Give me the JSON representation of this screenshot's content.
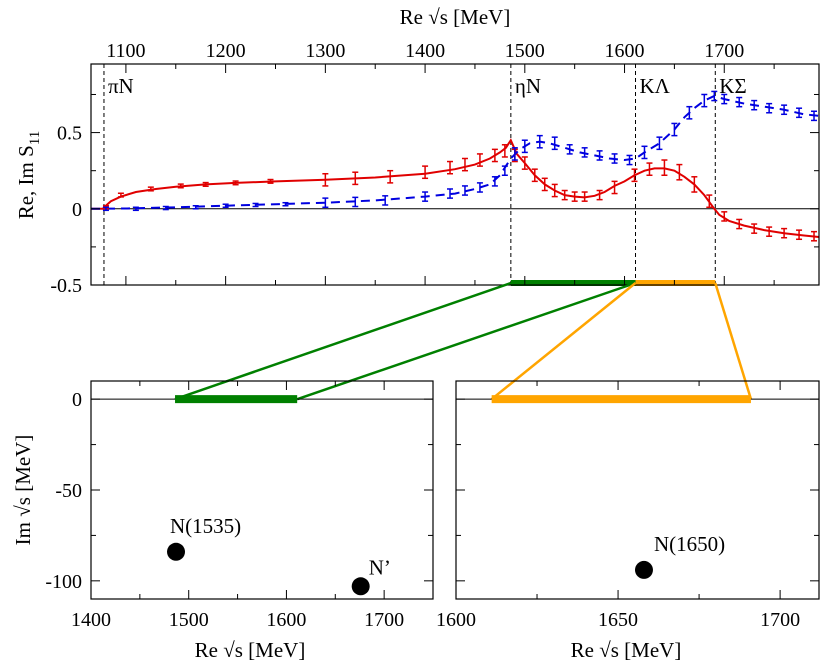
{
  "chart_data": [
    {
      "type": "line",
      "xlabel": "Re √s [MeV]",
      "ylabel_main": "Re, Im S",
      "ylabel_sub": "11",
      "xlim": [
        1065,
        1795
      ],
      "ylim": [
        -0.5,
        0.95
      ],
      "xticks": [
        1100,
        1200,
        1300,
        1400,
        1500,
        1600,
        1700
      ],
      "yticks": [
        -0.5,
        0,
        0.5
      ],
      "ytick_labels": [
        "-0.5",
        "0",
        "0.5"
      ],
      "thresholds": [
        {
          "label": "πN",
          "x": 1078
        },
        {
          "label": "ηN",
          "x": 1486
        },
        {
          "label": "KΛ",
          "x": 1611
        },
        {
          "label": "KΣ",
          "x": 1691
        }
      ],
      "series": [
        {
          "color": "#e00000",
          "dash": "solid",
          "curve": [
            [
              1065,
              0
            ],
            [
              1077,
              0
            ],
            [
              1078,
              0.01
            ],
            [
              1085,
              0.05
            ],
            [
              1095,
              0.08
            ],
            [
              1110,
              0.11
            ],
            [
              1130,
              0.13
            ],
            [
              1150,
              0.145
            ],
            [
              1180,
              0.16
            ],
            [
              1210,
              0.17
            ],
            [
              1250,
              0.18
            ],
            [
              1300,
              0.19
            ],
            [
              1350,
              0.205
            ],
            [
              1400,
              0.23
            ],
            [
              1430,
              0.26
            ],
            [
              1450,
              0.29
            ],
            [
              1465,
              0.33
            ],
            [
              1475,
              0.37
            ],
            [
              1481,
              0.4
            ],
            [
              1486,
              0.45
            ],
            [
              1492,
              0.36
            ],
            [
              1500,
              0.3
            ],
            [
              1510,
              0.22
            ],
            [
              1520,
              0.16
            ],
            [
              1530,
              0.12
            ],
            [
              1540,
              0.09
            ],
            [
              1550,
              0.08
            ],
            [
              1560,
              0.075
            ],
            [
              1570,
              0.085
            ],
            [
              1580,
              0.11
            ],
            [
              1590,
              0.15
            ],
            [
              1600,
              0.18
            ],
            [
              1610,
              0.22
            ],
            [
              1620,
              0.25
            ],
            [
              1630,
              0.265
            ],
            [
              1640,
              0.265
            ],
            [
              1650,
              0.25
            ],
            [
              1660,
              0.21
            ],
            [
              1670,
              0.16
            ],
            [
              1680,
              0.09
            ],
            [
              1690,
              0.0
            ],
            [
              1695,
              -0.04
            ],
            [
              1705,
              -0.08
            ],
            [
              1720,
              -0.11
            ],
            [
              1740,
              -0.14
            ],
            [
              1760,
              -0.16
            ],
            [
              1780,
              -0.175
            ],
            [
              1795,
              -0.185
            ]
          ],
          "points": [
            {
              "x": 1080,
              "y": 0.01,
              "e": 0.01
            },
            {
              "x": 1095,
              "y": 0.09,
              "e": 0.012
            },
            {
              "x": 1125,
              "y": 0.13,
              "e": 0.012
            },
            {
              "x": 1155,
              "y": 0.15,
              "e": 0.012
            },
            {
              "x": 1180,
              "y": 0.16,
              "e": 0.012
            },
            {
              "x": 1210,
              "y": 0.17,
              "e": 0.012
            },
            {
              "x": 1245,
              "y": 0.18,
              "e": 0.012
            },
            {
              "x": 1300,
              "y": 0.19,
              "e": 0.04
            },
            {
              "x": 1330,
              "y": 0.2,
              "e": 0.04
            },
            {
              "x": 1365,
              "y": 0.21,
              "e": 0.04
            },
            {
              "x": 1400,
              "y": 0.24,
              "e": 0.04
            },
            {
              "x": 1425,
              "y": 0.27,
              "e": 0.04
            },
            {
              "x": 1440,
              "y": 0.29,
              "e": 0.04
            },
            {
              "x": 1455,
              "y": 0.32,
              "e": 0.04
            },
            {
              "x": 1470,
              "y": 0.35,
              "e": 0.04
            },
            {
              "x": 1480,
              "y": 0.38,
              "e": 0.04
            },
            {
              "x": 1490,
              "y": 0.35,
              "e": 0.04
            },
            {
              "x": 1500,
              "y": 0.3,
              "e": 0.04
            },
            {
              "x": 1510,
              "y": 0.22,
              "e": 0.04
            },
            {
              "x": 1520,
              "y": 0.16,
              "e": 0.04
            },
            {
              "x": 1530,
              "y": 0.12,
              "e": 0.04
            },
            {
              "x": 1540,
              "y": 0.09,
              "e": 0.03
            },
            {
              "x": 1550,
              "y": 0.08,
              "e": 0.03
            },
            {
              "x": 1560,
              "y": 0.08,
              "e": 0.03
            },
            {
              "x": 1575,
              "y": 0.09,
              "e": 0.03
            },
            {
              "x": 1590,
              "y": 0.14,
              "e": 0.04
            },
            {
              "x": 1610,
              "y": 0.22,
              "e": 0.04
            },
            {
              "x": 1625,
              "y": 0.26,
              "e": 0.04
            },
            {
              "x": 1640,
              "y": 0.27,
              "e": 0.05
            },
            {
              "x": 1655,
              "y": 0.24,
              "e": 0.05
            },
            {
              "x": 1670,
              "y": 0.16,
              "e": 0.05
            },
            {
              "x": 1685,
              "y": 0.05,
              "e": 0.04
            },
            {
              "x": 1700,
              "y": -0.05,
              "e": 0.03
            },
            {
              "x": 1715,
              "y": -0.1,
              "e": 0.03
            },
            {
              "x": 1730,
              "y": -0.13,
              "e": 0.03
            },
            {
              "x": 1745,
              "y": -0.15,
              "e": 0.03
            },
            {
              "x": 1760,
              "y": -0.16,
              "e": 0.03
            },
            {
              "x": 1775,
              "y": -0.17,
              "e": 0.03
            },
            {
              "x": 1790,
              "y": -0.18,
              "e": 0.03
            }
          ]
        },
        {
          "color": "#0000e0",
          "dash": "dashed",
          "curve": [
            [
              1065,
              0
            ],
            [
              1100,
              0.002
            ],
            [
              1150,
              0.01
            ],
            [
              1200,
              0.02
            ],
            [
              1250,
              0.03
            ],
            [
              1300,
              0.04
            ],
            [
              1350,
              0.055
            ],
            [
              1400,
              0.08
            ],
            [
              1430,
              0.1
            ],
            [
              1450,
              0.13
            ],
            [
              1465,
              0.16
            ],
            [
              1475,
              0.22
            ],
            [
              1481,
              0.28
            ],
            [
              1486,
              0.33
            ],
            [
              1495,
              0.39
            ],
            [
              1505,
              0.43
            ],
            [
              1515,
              0.44
            ],
            [
              1525,
              0.43
            ],
            [
              1540,
              0.4
            ],
            [
              1555,
              0.37
            ],
            [
              1570,
              0.35
            ],
            [
              1585,
              0.33
            ],
            [
              1600,
              0.32
            ],
            [
              1611,
              0.33
            ],
            [
              1620,
              0.37
            ],
            [
              1635,
              0.43
            ],
            [
              1650,
              0.52
            ],
            [
              1660,
              0.6
            ],
            [
              1670,
              0.66
            ],
            [
              1680,
              0.71
            ],
            [
              1690,
              0.74
            ],
            [
              1700,
              0.72
            ],
            [
              1720,
              0.69
            ],
            [
              1740,
              0.67
            ],
            [
              1760,
              0.65
            ],
            [
              1780,
              0.62
            ],
            [
              1795,
              0.61
            ]
          ],
          "points": [
            {
              "x": 1080,
              "y": 0.0,
              "e": 0.01
            },
            {
              "x": 1110,
              "y": 0.0,
              "e": 0.01
            },
            {
              "x": 1140,
              "y": 0.005,
              "e": 0.01
            },
            {
              "x": 1170,
              "y": 0.01,
              "e": 0.01
            },
            {
              "x": 1200,
              "y": 0.02,
              "e": 0.01
            },
            {
              "x": 1230,
              "y": 0.025,
              "e": 0.01
            },
            {
              "x": 1260,
              "y": 0.03,
              "e": 0.01
            },
            {
              "x": 1300,
              "y": 0.04,
              "e": 0.03
            },
            {
              "x": 1330,
              "y": 0.045,
              "e": 0.03
            },
            {
              "x": 1360,
              "y": 0.055,
              "e": 0.03
            },
            {
              "x": 1400,
              "y": 0.08,
              "e": 0.03
            },
            {
              "x": 1425,
              "y": 0.1,
              "e": 0.03
            },
            {
              "x": 1440,
              "y": 0.12,
              "e": 0.03
            },
            {
              "x": 1455,
              "y": 0.14,
              "e": 0.03
            },
            {
              "x": 1470,
              "y": 0.18,
              "e": 0.03
            },
            {
              "x": 1480,
              "y": 0.25,
              "e": 0.03
            },
            {
              "x": 1490,
              "y": 0.36,
              "e": 0.04
            },
            {
              "x": 1500,
              "y": 0.41,
              "e": 0.04
            },
            {
              "x": 1515,
              "y": 0.44,
              "e": 0.04
            },
            {
              "x": 1530,
              "y": 0.43,
              "e": 0.04
            },
            {
              "x": 1545,
              "y": 0.39,
              "e": 0.03
            },
            {
              "x": 1560,
              "y": 0.37,
              "e": 0.03
            },
            {
              "x": 1575,
              "y": 0.35,
              "e": 0.03
            },
            {
              "x": 1590,
              "y": 0.33,
              "e": 0.03
            },
            {
              "x": 1605,
              "y": 0.32,
              "e": 0.03
            },
            {
              "x": 1620,
              "y": 0.37,
              "e": 0.04
            },
            {
              "x": 1635,
              "y": 0.43,
              "e": 0.04
            },
            {
              "x": 1650,
              "y": 0.52,
              "e": 0.04
            },
            {
              "x": 1665,
              "y": 0.63,
              "e": 0.04
            },
            {
              "x": 1680,
              "y": 0.71,
              "e": 0.04
            },
            {
              "x": 1690,
              "y": 0.74,
              "e": 0.03
            },
            {
              "x": 1700,
              "y": 0.72,
              "e": 0.03
            },
            {
              "x": 1715,
              "y": 0.7,
              "e": 0.03
            },
            {
              "x": 1730,
              "y": 0.68,
              "e": 0.03
            },
            {
              "x": 1745,
              "y": 0.66,
              "e": 0.03
            },
            {
              "x": 1760,
              "y": 0.65,
              "e": 0.03
            },
            {
              "x": 1775,
              "y": 0.63,
              "e": 0.03
            },
            {
              "x": 1790,
              "y": 0.61,
              "e": 0.03
            }
          ]
        }
      ],
      "bands": [
        {
          "color": "#008000",
          "x": [
            1486,
            1611
          ],
          "y": -0.5
        },
        {
          "color": "#ffa500",
          "x": [
            1611,
            1691
          ],
          "y": -0.5
        }
      ]
    },
    {
      "type": "scatter",
      "xlabel": "Re √s [MeV]",
      "ylabel": "Im √s [MeV]",
      "xlim": [
        1400,
        1750
      ],
      "ylim": [
        -110,
        10
      ],
      "xticks": [
        1400,
        1500,
        1600,
        1700
      ],
      "yticks": [
        0,
        -50,
        -100
      ],
      "band": {
        "color": "#008000",
        "x": [
          1486,
          1611
        ],
        "y": 0
      },
      "points": [
        {
          "label": "N(1535)",
          "x": 1487,
          "y": -84
        },
        {
          "label": "N’",
          "x": 1676,
          "y": -103
        }
      ]
    },
    {
      "type": "scatter",
      "xlabel": "Re √s [MeV]",
      "xlim": [
        1600,
        1712
      ],
      "ylim": [
        -110,
        10
      ],
      "xticks": [
        1600,
        1650,
        1700
      ],
      "yticks": [
        0,
        -50,
        -100
      ],
      "band": {
        "color": "#ffa500",
        "x": [
          1611,
          1691
        ],
        "y": 0
      },
      "points": [
        {
          "label": "N(1650)",
          "x": 1658,
          "y": -94
        }
      ]
    }
  ]
}
